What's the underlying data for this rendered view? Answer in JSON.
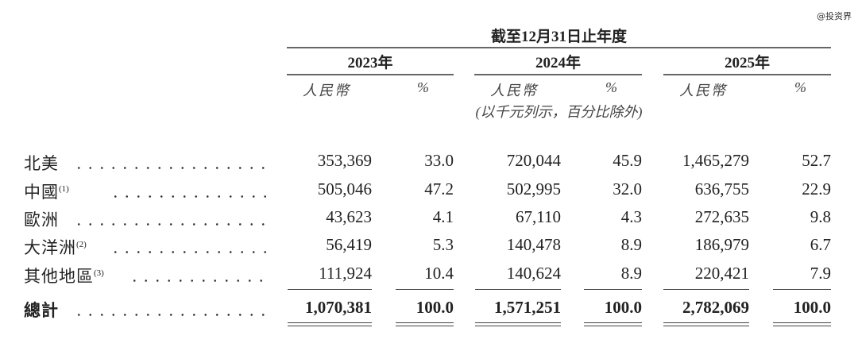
{
  "watermark": "@投资界",
  "header": {
    "title": "截至12月31日止年度",
    "years": [
      "2023年",
      "2024年",
      "2025年"
    ],
    "currency_label": "人民幣",
    "percent_label": "%",
    "unit_note": "(以千元列示，百分比除外)"
  },
  "rows": [
    {
      "label": "北美",
      "note": "",
      "values": [
        "353,369",
        "33.0",
        "720,044",
        "45.9",
        "1,465,279",
        "52.7"
      ]
    },
    {
      "label": "中國",
      "note": "(1)",
      "values": [
        "505,046",
        "47.2",
        "502,995",
        "32.0",
        "636,755",
        "22.9"
      ]
    },
    {
      "label": "歐洲",
      "note": "",
      "values": [
        "43,623",
        "4.1",
        "67,110",
        "4.3",
        "272,635",
        "9.8"
      ]
    },
    {
      "label": "大洋洲",
      "note": "(2)",
      "values": [
        "56,419",
        "5.3",
        "140,478",
        "8.9",
        "186,979",
        "6.7"
      ]
    },
    {
      "label": "其他地區",
      "note": "(3)",
      "values": [
        "111,924",
        "10.4",
        "140,624",
        "8.9",
        "220,421",
        "7.9"
      ]
    }
  ],
  "total": {
    "label": "總計",
    "values": [
      "1,070,381",
      "100.0",
      "1,571,251",
      "100.0",
      "2,782,069",
      "100.0"
    ]
  }
}
